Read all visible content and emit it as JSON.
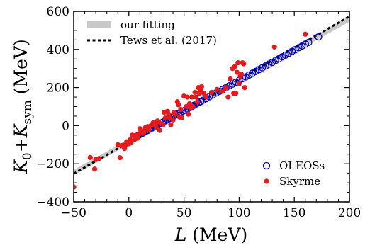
{
  "chart_data": {
    "type": "scatter",
    "title": "",
    "xlabel": {
      "var": "L",
      "unit": " (MeV)"
    },
    "ylabel": {
      "var1": "K",
      "sub1": "0",
      "plus": "+",
      "var2": "K",
      "sub2": "sym",
      "unit": " (MeV)"
    },
    "xlim": [
      -50,
      200
    ],
    "ylim": [
      -400,
      600
    ],
    "x_ticks": [
      -50,
      0,
      50,
      100,
      150,
      200
    ],
    "y_ticks": [
      -400,
      -200,
      0,
      200,
      400,
      600
    ],
    "x_tick_labels": [
      "−50",
      "0",
      "50",
      "100",
      "150",
      "200"
    ],
    "y_tick_labels": [
      "−400",
      "−200",
      "0",
      "200",
      "400",
      "600"
    ],
    "grid": false,
    "legend_top": {
      "placement": "top-left",
      "entries": [
        "our fitting",
        "Tews et al. (2017)"
      ]
    },
    "legend_bottom": {
      "placement": "bottom-right",
      "entries": [
        "OI EOSs",
        "Skyrme"
      ]
    },
    "fit_band": {
      "name": "our fitting",
      "slope": 3.22,
      "intercept": -85,
      "color": "#c8c8c8",
      "width_mev": 28,
      "x_range": [
        -50,
        200
      ]
    },
    "tews_line": {
      "name": "Tews et al. (2017)",
      "slope": 3.3,
      "intercept": -87,
      "color": "#000000",
      "x_range": [
        -50,
        200
      ]
    },
    "series": [
      {
        "name": "OI EOSs",
        "marker": "open-circle",
        "color": "#0000cc",
        "x": [
          5,
          7,
          9,
          11,
          13,
          15,
          17,
          19,
          21,
          23,
          25,
          27,
          29,
          31,
          33,
          35,
          37,
          39,
          41,
          43,
          45,
          47,
          49,
          51,
          53,
          55,
          57,
          59,
          61,
          63,
          65,
          67,
          70,
          73,
          76,
          79,
          82,
          85,
          88,
          91,
          94,
          97,
          100,
          103,
          106,
          109,
          112,
          115,
          118,
          121,
          124,
          127,
          130,
          133,
          136,
          139,
          142,
          145,
          148,
          151,
          154,
          157,
          160,
          163,
          172
        ],
        "y": [
          -62,
          -56,
          -50,
          -44,
          -38,
          -31,
          -25,
          -18,
          -12,
          -6,
          0,
          6,
          13,
          19,
          25,
          32,
          38,
          44,
          51,
          57,
          63,
          70,
          76,
          82,
          88,
          95,
          101,
          107,
          114,
          120,
          126,
          133,
          142,
          152,
          161,
          171,
          180,
          190,
          199,
          209,
          218,
          228,
          237,
          247,
          256,
          266,
          275,
          285,
          294,
          304,
          313,
          323,
          332,
          342,
          351,
          361,
          370,
          380,
          390,
          399,
          409,
          418,
          428,
          437,
          466
        ]
      },
      {
        "name": "Skyrme",
        "marker": "filled-circle",
        "color": "#e41a1c",
        "x": [
          -50,
          -35,
          -31,
          -30,
          -27,
          -10,
          -8,
          -6,
          -5,
          -4,
          -3,
          -2,
          -1,
          0,
          1,
          2,
          3,
          4,
          5,
          6,
          7,
          8,
          9,
          10,
          11,
          12,
          13,
          14,
          15,
          16,
          17,
          18,
          20,
          22,
          24,
          25,
          26,
          27,
          28,
          30,
          31,
          32,
          33,
          35,
          36,
          37,
          38,
          40,
          41,
          42,
          44,
          45,
          46,
          47,
          48,
          50,
          52,
          53,
          54,
          55,
          56,
          57,
          58,
          60,
          61,
          62,
          63,
          64,
          65,
          66,
          68,
          70,
          75,
          80,
          85,
          88,
          90,
          92,
          94,
          95,
          96,
          97,
          98,
          99,
          100,
          101,
          102,
          103,
          104,
          105,
          132,
          160
        ],
        "y": [
          -322,
          -167,
          -228,
          -178,
          -172,
          -100,
          -168,
          -104,
          -102,
          -120,
          -101,
          -85,
          -95,
          -95,
          -75,
          -90,
          -50,
          -52,
          -73,
          -52,
          -60,
          -66,
          -45,
          -16,
          -25,
          -35,
          -40,
          -30,
          -10,
          -15,
          -5,
          -22,
          0,
          15,
          5,
          -10,
          25,
          20,
          -25,
          10,
          5,
          70,
          40,
          75,
          60,
          40,
          5,
          30,
          70,
          60,
          125,
          110,
          45,
          85,
          42,
          155,
          100,
          150,
          60,
          115,
          90,
          150,
          100,
          175,
          150,
          125,
          200,
          170,
          185,
          205,
          170,
          150,
          175,
          190,
          180,
          200,
          150,
          245,
          300,
          170,
          310,
          170,
          280,
          330,
          220,
          260,
          270,
          330,
          325,
          200,
          413,
          480
        ]
      }
    ]
  }
}
